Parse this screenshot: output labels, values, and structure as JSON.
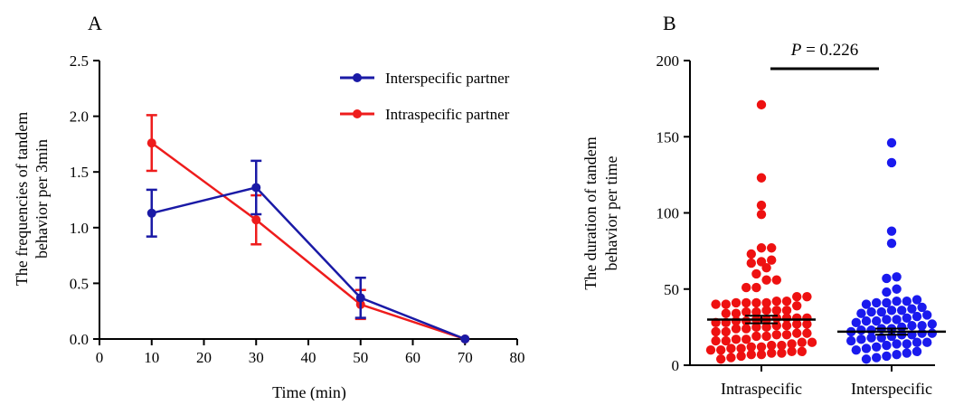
{
  "panels": {
    "A": {
      "letter": "A"
    },
    "B": {
      "letter": "B"
    }
  },
  "chart_data": [
    {
      "id": "A",
      "type": "line",
      "title": "",
      "xlabel": "Time (min)",
      "ylabel": "The frequencies of tandem behavior per 3min",
      "ylabel_lines": [
        "The frequencies of tandem",
        "behavior per 3min"
      ],
      "xlim": [
        0,
        80
      ],
      "ylim": [
        0,
        2.5
      ],
      "xticks": [
        0,
        10,
        20,
        30,
        40,
        50,
        60,
        70,
        80
      ],
      "yticks": [
        0.0,
        0.5,
        1.0,
        1.5,
        2.0,
        2.5
      ],
      "ytick_labels": [
        "0.0",
        "0.5",
        "1.0",
        "1.5",
        "2.0",
        "2.5"
      ],
      "legend_position": "top-right",
      "series": [
        {
          "name": "Interspecific partner",
          "color": "#1a1aa6",
          "x": [
            10,
            30,
            50,
            70
          ],
          "y": [
            1.13,
            1.36,
            0.37,
            0.0
          ],
          "error": [
            0.21,
            0.24,
            0.18,
            0.0
          ]
        },
        {
          "name": "Intraspecific partner",
          "color": "#ee1c1c",
          "x": [
            10,
            30,
            50,
            70
          ],
          "y": [
            1.76,
            1.07,
            0.31,
            0.0
          ],
          "error": [
            0.25,
            0.22,
            0.13,
            0.0
          ]
        }
      ]
    },
    {
      "id": "B",
      "type": "scatter",
      "title": "",
      "xlabel": "",
      "ylabel": "The duration of tandem behavior per time",
      "ylabel_lines": [
        "The duration of tandem",
        "behavior per time"
      ],
      "ylim": [
        0,
        200
      ],
      "yticks": [
        0,
        50,
        100,
        150,
        200
      ],
      "categories": [
        "Intraspecific",
        "Interspecific"
      ],
      "annotation": {
        "italic": "P",
        "rest": " = 0.226"
      },
      "groups": [
        {
          "name": "Intraspecific",
          "color": "#ee1111",
          "mean": 30,
          "sem": 2.5,
          "values": [
            171,
            123,
            105,
            99,
            77,
            77,
            73,
            69,
            68,
            67,
            64,
            60,
            56,
            56,
            51,
            51,
            45,
            45,
            42,
            42,
            41,
            41,
            41,
            41,
            40,
            40,
            39,
            36,
            36,
            36,
            35,
            35,
            34,
            34,
            31,
            31,
            31,
            31,
            30,
            30,
            29,
            29,
            28,
            28,
            27,
            27,
            26,
            26,
            25,
            25,
            24,
            24,
            22,
            22,
            21,
            21,
            20,
            20,
            19,
            19,
            17,
            17,
            16,
            16,
            15,
            15,
            14,
            13,
            13,
            12,
            12,
            11,
            11,
            10,
            10,
            9,
            9,
            8,
            8,
            7,
            7,
            6,
            5,
            4
          ]
        },
        {
          "name": "Interspecific",
          "color": "#1a1aee",
          "mean": 22,
          "sem": 2.0,
          "values": [
            146,
            133,
            88,
            80,
            58,
            57,
            50,
            48,
            43,
            42,
            42,
            41,
            41,
            40,
            38,
            37,
            36,
            36,
            35,
            35,
            34,
            33,
            32,
            31,
            30,
            30,
            29,
            29,
            28,
            27,
            26,
            26,
            25,
            24,
            24,
            23,
            23,
            22,
            21,
            21,
            20,
            20,
            19,
            18,
            18,
            17,
            16,
            15,
            15,
            14,
            14,
            13,
            12,
            11,
            10,
            9,
            8,
            7,
            6,
            5,
            4
          ]
        }
      ]
    }
  ]
}
